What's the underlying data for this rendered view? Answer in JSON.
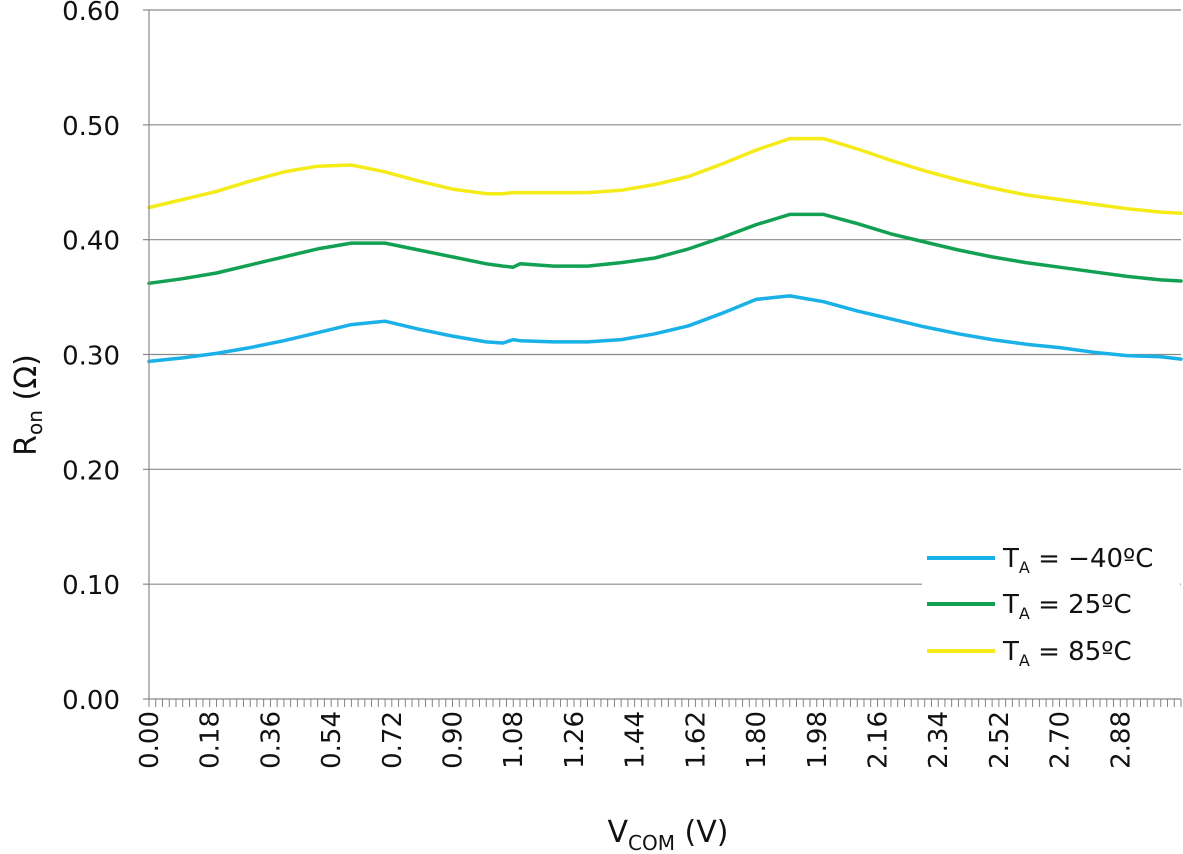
{
  "chart_data": {
    "type": "line",
    "xlabel_main": "V",
    "xlabel_sub": "COM",
    "xlabel_tail": " (V)",
    "ylabel_main": "R",
    "ylabel_sub": "on",
    "ylabel_tail": " (Ω)",
    "xlim": [
      0,
      3.06
    ],
    "ylim": [
      0,
      0.6
    ],
    "y_ticks": [
      "0.00",
      "0.10",
      "0.20",
      "0.30",
      "0.40",
      "0.50",
      "0.60"
    ],
    "x_ticks": [
      "0.00",
      "0.18",
      "0.36",
      "0.54",
      "0.72",
      "0.90",
      "1.08",
      "1.26",
      "1.44",
      "1.62",
      "1.80",
      "1.98",
      "2.16",
      "2.34",
      "2.52",
      "2.70",
      "2.88"
    ],
    "grid": "horizontal",
    "legend_placement": "bottom-right",
    "x": [
      0.0,
      0.1,
      0.2,
      0.3,
      0.4,
      0.5,
      0.6,
      0.7,
      0.8,
      0.9,
      1.0,
      1.05,
      1.08,
      1.1,
      1.2,
      1.3,
      1.4,
      1.5,
      1.6,
      1.7,
      1.8,
      1.9,
      2.0,
      2.1,
      2.2,
      2.3,
      2.4,
      2.5,
      2.6,
      2.7,
      2.8,
      2.9,
      3.0,
      3.06
    ],
    "series": [
      {
        "name_main": "T",
        "name_sub": "A",
        "name_tail": " = −40ºC",
        "color": "#1ab0e8",
        "values": [
          0.294,
          0.297,
          0.301,
          0.306,
          0.312,
          0.319,
          0.326,
          0.329,
          0.322,
          0.316,
          0.311,
          0.31,
          0.313,
          0.312,
          0.311,
          0.311,
          0.313,
          0.318,
          0.325,
          0.336,
          0.348,
          0.351,
          0.346,
          0.338,
          0.331,
          0.324,
          0.318,
          0.313,
          0.309,
          0.306,
          0.302,
          0.299,
          0.298,
          0.296
        ]
      },
      {
        "name_main": "T",
        "name_sub": "A",
        "name_tail": " = 25ºC",
        "color": "#12a152",
        "values": [
          0.362,
          0.366,
          0.371,
          0.378,
          0.385,
          0.392,
          0.397,
          0.397,
          0.391,
          0.385,
          0.379,
          0.377,
          0.376,
          0.379,
          0.377,
          0.377,
          0.38,
          0.384,
          0.392,
          0.402,
          0.413,
          0.422,
          0.422,
          0.414,
          0.405,
          0.398,
          0.391,
          0.385,
          0.38,
          0.376,
          0.372,
          0.368,
          0.365,
          0.364
        ]
      },
      {
        "name_main": "T",
        "name_sub": "A",
        "name_tail": " = 85ºC",
        "color": "#f4eb18",
        "values": [
          0.428,
          0.435,
          0.442,
          0.451,
          0.459,
          0.464,
          0.465,
          0.459,
          0.451,
          0.444,
          0.44,
          0.44,
          0.441,
          0.441,
          0.441,
          0.441,
          0.443,
          0.448,
          0.455,
          0.466,
          0.478,
          0.488,
          0.488,
          0.479,
          0.469,
          0.46,
          0.452,
          0.445,
          0.439,
          0.435,
          0.431,
          0.427,
          0.424,
          0.423
        ]
      }
    ]
  }
}
